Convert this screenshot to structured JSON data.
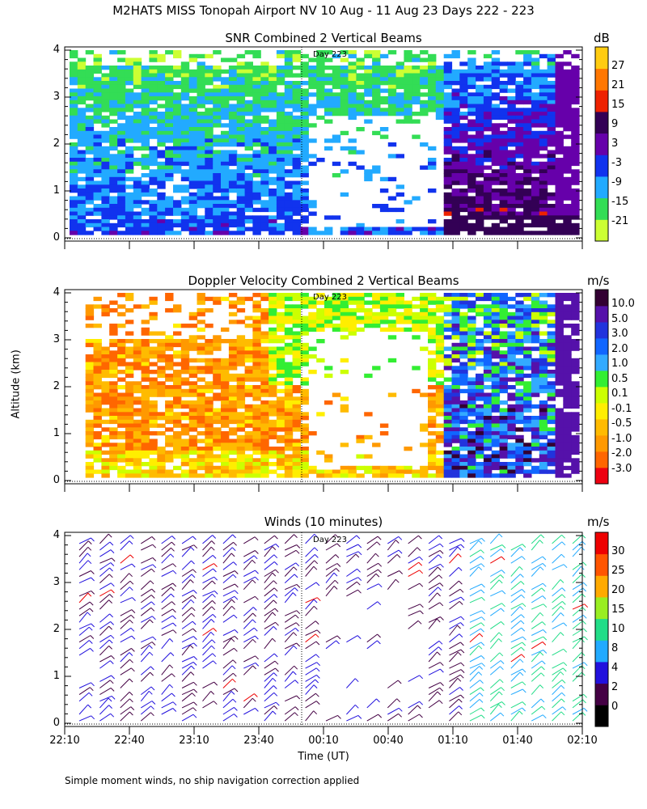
{
  "figure_title": "M2HATS MISS Tonopah Airport NV  10 Aug - 11 Aug 23 Days 222 - 223",
  "footnote": "Simple moment winds, no ship navigation correction applied",
  "y_axis_label": "Altitude (km)",
  "x_axis_label": "Time (UT)",
  "day_marker_label": "Day 223",
  "panels": [
    {
      "title": "SNR Combined 2 Vertical Beams",
      "units": "dB",
      "colorbar_ticks": [
        "27",
        "21",
        "15",
        "9",
        "3",
        "-3",
        "-9",
        "-15",
        "-21"
      ],
      "colors": [
        "#ccff33",
        "#33dd55",
        "#22aaff",
        "#1133ee",
        "#6600aa",
        "#330055",
        "#ee2200",
        "#ff7700",
        "#ffcc11"
      ]
    },
    {
      "title": "Doppler Velocity Combined 2 Vertical Beams",
      "units": "m/s",
      "colorbar_ticks": [
        "10.0",
        "5.0",
        "3.0",
        "2.0",
        "1.0",
        "0.5",
        "0.1",
        "-0.1",
        "-0.5",
        "-1.0",
        "-2.0",
        "-3.0"
      ],
      "colors": [
        "#ee0011",
        "#ff6600",
        "#ff9900",
        "#ffbb00",
        "#ffee00",
        "#ccff00",
        "#33ee33",
        "#33aaff",
        "#1166ff",
        "#2233dd",
        "#5511aa",
        "#330033"
      ]
    },
    {
      "title": "Winds (10 minutes)",
      "units": "m/s",
      "colorbar_ticks": [
        "30",
        "25",
        "20",
        "15",
        "10",
        "8",
        "4",
        "2",
        "0"
      ],
      "colors": [
        "#000000",
        "#440044",
        "#2211dd",
        "#22aaff",
        "#22dd88",
        "#99ee22",
        "#ffaa00",
        "#ff5500",
        "#ee0000"
      ]
    }
  ],
  "chart_data": [
    {
      "type": "heatmap",
      "title": "SNR Combined 2 Vertical Beams",
      "ylabel": "Altitude (km)",
      "ylim": [
        0,
        4
      ],
      "yticks": [
        0,
        1,
        2,
        3,
        4
      ],
      "colorbar_units": "dB",
      "colorbar_range": [
        -21,
        27
      ]
    },
    {
      "type": "heatmap",
      "title": "Doppler Velocity Combined 2 Vertical Beams",
      "ylabel": "Altitude (km)",
      "ylim": [
        0,
        4
      ],
      "yticks": [
        0,
        1,
        2,
        3,
        4
      ],
      "colorbar_units": "m/s",
      "colorbar_range": [
        -3.0,
        10.0
      ]
    },
    {
      "type": "scatter",
      "title": "Winds (10 minutes)",
      "xlabel": "Time (UT)",
      "ylabel": "Altitude (km)",
      "ylim": [
        0,
        4
      ],
      "yticks": [
        0,
        1,
        2,
        3,
        4
      ],
      "xticks": [
        "22:10",
        "22:40",
        "23:10",
        "23:40",
        "00:10",
        "00:40",
        "01:10",
        "01:40",
        "02:10"
      ],
      "colorbar_units": "m/s",
      "colorbar_range": [
        0,
        30
      ]
    }
  ]
}
